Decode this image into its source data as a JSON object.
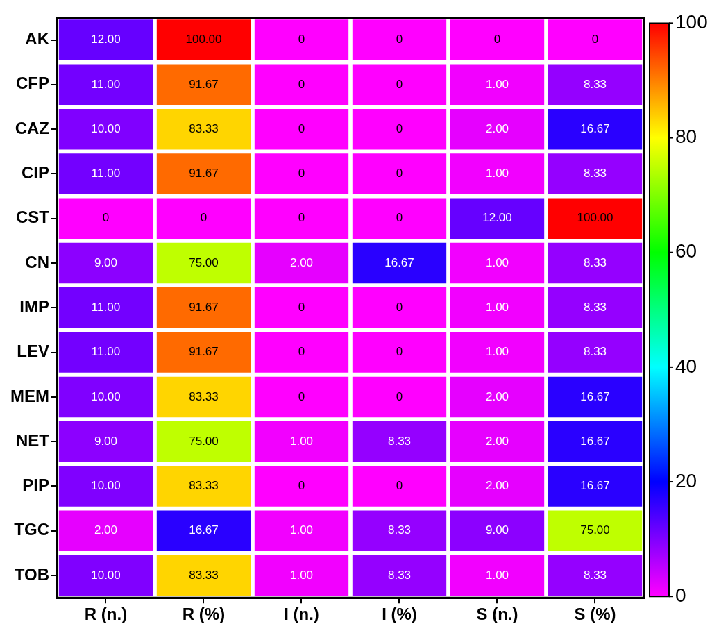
{
  "chart_data": {
    "type": "heatmap",
    "categories": [
      "R (n.)",
      "R (%)",
      "I (n.)",
      "I (%)",
      "S (n.)",
      "S (%)"
    ],
    "y_categories": [
      "AK",
      "CFP",
      "CAZ",
      "CIP",
      "CST",
      "CN",
      "IMP",
      "LEV",
      "MEM",
      "NET",
      "PIP",
      "TGC",
      "TOB"
    ],
    "cells": [
      [
        12,
        100,
        0,
        0,
        0,
        0
      ],
      [
        11,
        91.67,
        0,
        0,
        1,
        8.33
      ],
      [
        10,
        83.33,
        0,
        0,
        2,
        16.67
      ],
      [
        11,
        91.67,
        0,
        0,
        1,
        8.33
      ],
      [
        0,
        0,
        0,
        0,
        12,
        100
      ],
      [
        9,
        75,
        2,
        16.67,
        1,
        8.33
      ],
      [
        11,
        91.67,
        0,
        0,
        1,
        8.33
      ],
      [
        11,
        91.67,
        0,
        0,
        1,
        8.33
      ],
      [
        10,
        83.33,
        0,
        0,
        2,
        16.67
      ],
      [
        9,
        75,
        1,
        8.33,
        2,
        16.67
      ],
      [
        10,
        83.33,
        0,
        0,
        2,
        16.67
      ],
      [
        2,
        16.67,
        1,
        8.33,
        9,
        75
      ],
      [
        10,
        83.33,
        1,
        8.33,
        1,
        8.33
      ]
    ],
    "cell_labels": [
      [
        "12.00",
        "100.00",
        "0",
        "0",
        "0",
        "0"
      ],
      [
        "11.00",
        "91.67",
        "0",
        "0",
        "1.00",
        "8.33"
      ],
      [
        "10.00",
        "83.33",
        "0",
        "0",
        "2.00",
        "16.67"
      ],
      [
        "11.00",
        "91.67",
        "0",
        "0",
        "1.00",
        "8.33"
      ],
      [
        "0",
        "0",
        "0",
        "0",
        "12.00",
        "100.00"
      ],
      [
        "9.00",
        "75.00",
        "2.00",
        "16.67",
        "1.00",
        "8.33"
      ],
      [
        "11.00",
        "91.67",
        "0",
        "0",
        "1.00",
        "8.33"
      ],
      [
        "11.00",
        "91.67",
        "0",
        "0",
        "1.00",
        "8.33"
      ],
      [
        "10.00",
        "83.33",
        "0",
        "0",
        "2.00",
        "16.67"
      ],
      [
        "9.00",
        "75.00",
        "1.00",
        "8.33",
        "2.00",
        "16.67"
      ],
      [
        "10.00",
        "83.33",
        "0",
        "0",
        "2.00",
        "16.67"
      ],
      [
        "2.00",
        "16.67",
        "1.00",
        "8.33",
        "9.00",
        "75.00"
      ],
      [
        "10.00",
        "83.33",
        "1.00",
        "8.33",
        "1.00",
        "8.33"
      ]
    ],
    "clim": [
      0,
      100
    ],
    "cticks": [
      0,
      20,
      40,
      60,
      80,
      100
    ]
  }
}
